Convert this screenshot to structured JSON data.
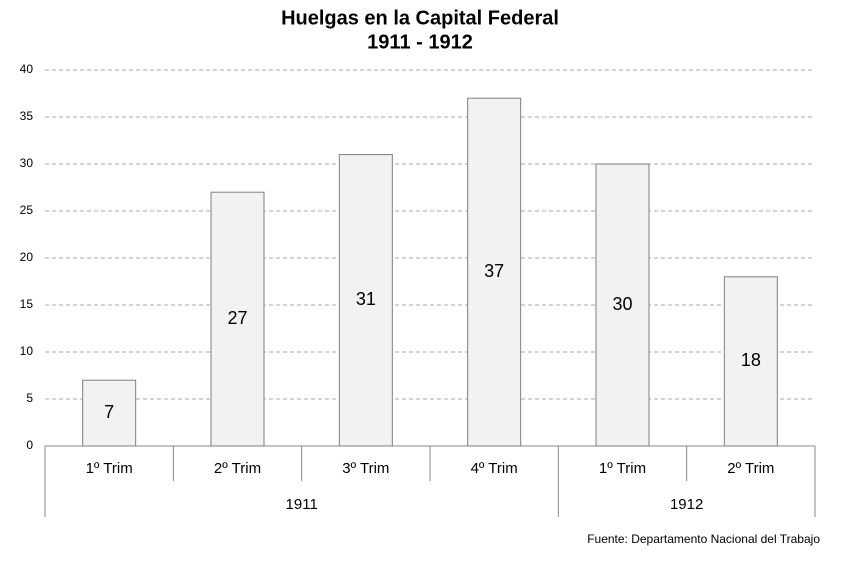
{
  "chart_data": {
    "type": "bar",
    "title": "Huelgas en la Capital Federal",
    "subtitle": "1911 - 1912",
    "groups": [
      {
        "name": "1911",
        "categories": [
          "1º Trim",
          "2º Trim",
          "3º Trim",
          "4º Trim"
        ],
        "values": [
          7,
          27,
          31,
          37
        ]
      },
      {
        "name": "1912",
        "categories": [
          "1º Trim",
          "2º Trim"
        ],
        "values": [
          30,
          18
        ]
      }
    ],
    "color": "#f2f2f2",
    "edge_color": "#7f7f7f",
    "ylim": [
      0,
      40
    ],
    "yticks": [
      0,
      5,
      10,
      15,
      20,
      25,
      30,
      35,
      40
    ],
    "grid": true,
    "source": "Fuente: Departamento Nacional  del Trabajo"
  }
}
